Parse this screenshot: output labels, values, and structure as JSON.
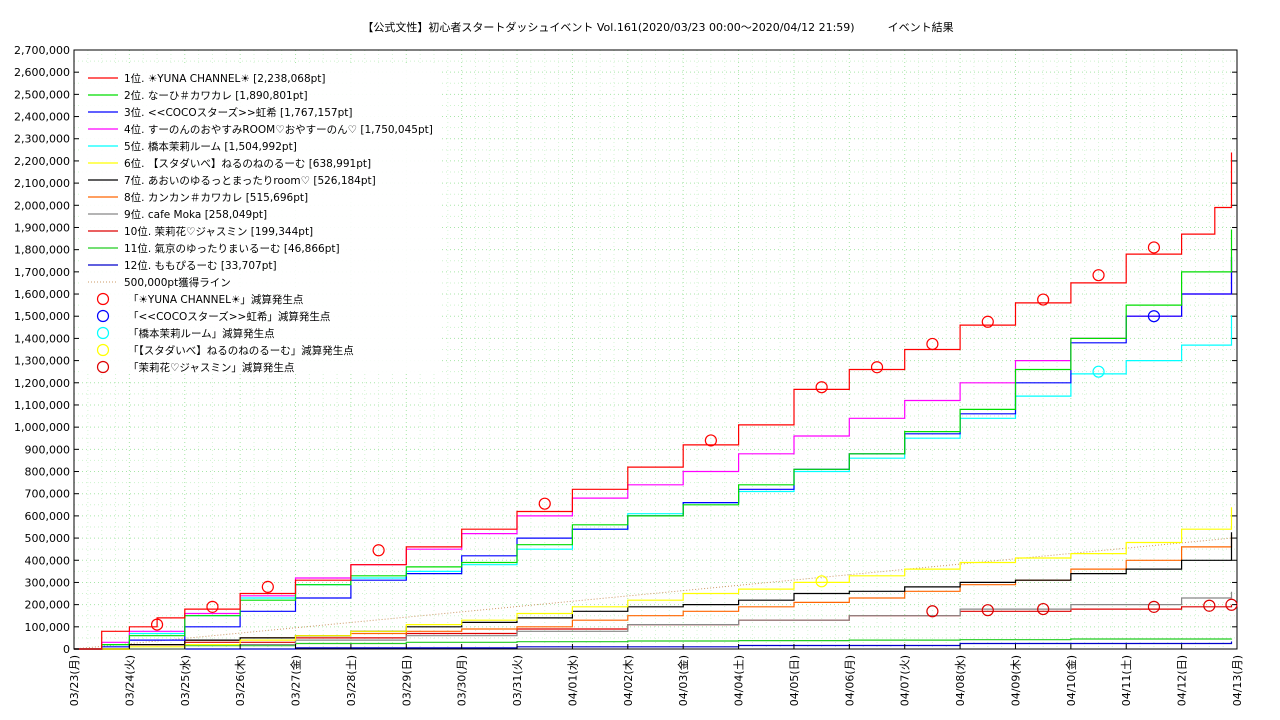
{
  "chart_data": {
    "type": "line",
    "title": "【公式文性】初心者スタートダッシュイベント Vol.161(2020/03/23 00:00〜2020/04/12 21:59)　　　イベント結果",
    "xlabel": "",
    "ylabel": "",
    "ylim": [
      0,
      2700000
    ],
    "xlim": [
      0,
      21
    ],
    "grid": true,
    "legend_position": "top-left",
    "y_ticks": [
      "0",
      "100,000",
      "200,000",
      "300,000",
      "400,000",
      "500,000",
      "600,000",
      "700,000",
      "800,000",
      "900,000",
      "1,000,000",
      "1,100,000",
      "1,200,000",
      "1,300,000",
      "1,400,000",
      "1,500,000",
      "1,600,000",
      "1,700,000",
      "1,800,000",
      "1,900,000",
      "2,000,000",
      "2,100,000",
      "2,200,000",
      "2,300,000",
      "2,400,000",
      "2,500,000",
      "2,600,000",
      "2,700,000"
    ],
    "x_ticks": [
      "03/23(月)",
      "03/24(火)",
      "03/25(水)",
      "03/26(木)",
      "03/27(金)",
      "03/28(土)",
      "03/29(日)",
      "03/30(月)",
      "03/31(火)",
      "04/01(水)",
      "04/02(木)",
      "04/03(金)",
      "04/04(土)",
      "04/05(日)",
      "04/06(月)",
      "04/07(火)",
      "04/08(水)",
      "04/09(木)",
      "04/10(金)",
      "04/11(土)",
      "04/12(日)",
      "04/13(月)"
    ],
    "series": [
      {
        "name": "1位. ☀YUNA CHANNEL☀ [2,238,068pt]",
        "color": "#ff0000",
        "x": [
          0,
          0.5,
          1,
          1.5,
          2,
          3,
          4,
          5,
          6,
          7,
          8,
          9,
          10,
          11,
          12,
          13,
          14,
          15,
          16,
          17,
          18,
          19,
          20,
          20.6,
          20.9
        ],
        "y": [
          0,
          80000,
          100000,
          140000,
          180000,
          250000,
          310000,
          380000,
          460000,
          540000,
          620000,
          720000,
          820000,
          920000,
          1010000,
          1170000,
          1260000,
          1350000,
          1460000,
          1560000,
          1650000,
          1780000,
          1870000,
          1990000,
          2238068
        ]
      },
      {
        "name": "2位. なーひ＃カワカレ [1,890,801pt]",
        "color": "#00dd00",
        "x": [
          0,
          0.5,
          1,
          2,
          3,
          4,
          5,
          6,
          7,
          8,
          9,
          10,
          11,
          12,
          13,
          14,
          15,
          16,
          17,
          18,
          19,
          20,
          20.9
        ],
        "y": [
          0,
          20000,
          60000,
          150000,
          220000,
          290000,
          330000,
          370000,
          390000,
          470000,
          560000,
          600000,
          650000,
          740000,
          810000,
          880000,
          980000,
          1080000,
          1260000,
          1400000,
          1550000,
          1700000,
          1890801
        ]
      },
      {
        "name": "3位. <<COCOスターズ>>虹希 [1,767,157pt]",
        "color": "#0000ff",
        "x": [
          0,
          0.5,
          1,
          2,
          3,
          4,
          5,
          6,
          7,
          8,
          9,
          10,
          11,
          12,
          13,
          14,
          15,
          16,
          17,
          18,
          19,
          20,
          20.9
        ],
        "y": [
          0,
          10000,
          40000,
          100000,
          170000,
          230000,
          310000,
          340000,
          420000,
          500000,
          540000,
          600000,
          660000,
          720000,
          810000,
          880000,
          970000,
          1060000,
          1200000,
          1380000,
          1500000,
          1600000,
          1767157
        ]
      },
      {
        "name": "4位. すーのんのおやすみROOM♡おやすーのん♡ [1,750,045pt]",
        "color": "#ff00ff",
        "x": [
          0,
          0.5,
          1,
          2,
          3,
          4,
          5,
          6,
          7,
          8,
          9,
          10,
          11,
          12,
          13,
          14,
          15,
          16,
          17,
          18,
          19,
          20,
          20.9
        ],
        "y": [
          0,
          30000,
          80000,
          160000,
          240000,
          320000,
          380000,
          450000,
          520000,
          600000,
          680000,
          740000,
          800000,
          880000,
          960000,
          1040000,
          1120000,
          1200000,
          1300000,
          1400000,
          1500000,
          1600000,
          1750045
        ]
      },
      {
        "name": "5位. 橋本茉莉ルーム [1,504,992pt]",
        "color": "#00ffff",
        "x": [
          0,
          0.5,
          1,
          2,
          3,
          4,
          5,
          6,
          7,
          8,
          9,
          10,
          11,
          12,
          13,
          14,
          15,
          16,
          17,
          18,
          19,
          20,
          20.9
        ],
        "y": [
          0,
          20000,
          70000,
          150000,
          230000,
          290000,
          320000,
          350000,
          380000,
          450000,
          540000,
          610000,
          660000,
          710000,
          800000,
          860000,
          950000,
          1040000,
          1140000,
          1240000,
          1300000,
          1370000,
          1504992
        ]
      },
      {
        "name": "6位. 【スタダいべ】ねるのねのるーむ [638,991pt]",
        "color": "#ffff00",
        "x": [
          0,
          1,
          2,
          3,
          4,
          5,
          6,
          7,
          8,
          9,
          10,
          11,
          12,
          13,
          14,
          15,
          16,
          17,
          18,
          19,
          20,
          20.9
        ],
        "y": [
          0,
          10000,
          20000,
          40000,
          60000,
          80000,
          110000,
          130000,
          160000,
          190000,
          220000,
          250000,
          270000,
          300000,
          330000,
          360000,
          390000,
          410000,
          430000,
          480000,
          540000,
          638991
        ]
      },
      {
        "name": "7位. あおいのゆるっとまったりroom♡ [526,184pt]",
        "color": "#000000",
        "x": [
          0,
          1,
          2,
          3,
          4,
          5,
          6,
          7,
          8,
          9,
          10,
          11,
          12,
          13,
          14,
          15,
          16,
          17,
          18,
          19,
          20,
          20.9
        ],
        "y": [
          0,
          20000,
          40000,
          50000,
          60000,
          80000,
          100000,
          120000,
          140000,
          170000,
          190000,
          200000,
          220000,
          250000,
          260000,
          280000,
          300000,
          310000,
          340000,
          360000,
          400000,
          526184
        ]
      },
      {
        "name": "8位. カンカン＃カワカレ [515,696pt]",
        "color": "#ff6600",
        "x": [
          0,
          1,
          2,
          3,
          4,
          5,
          6,
          7,
          8,
          9,
          10,
          11,
          12,
          13,
          14,
          15,
          16,
          17,
          18,
          19,
          20,
          20.9
        ],
        "y": [
          0,
          20000,
          40000,
          50000,
          60000,
          70000,
          80000,
          90000,
          100000,
          130000,
          150000,
          170000,
          190000,
          210000,
          230000,
          260000,
          290000,
          310000,
          360000,
          400000,
          460000,
          515696
        ]
      },
      {
        "name": "9位. cafe Moka [258,049pt]",
        "color": "#888888",
        "x": [
          0,
          2,
          4,
          6,
          8,
          10,
          12,
          14,
          16,
          18,
          20,
          20.9
        ],
        "y": [
          0,
          20000,
          40000,
          60000,
          80000,
          110000,
          130000,
          150000,
          180000,
          200000,
          230000,
          258049
        ]
      },
      {
        "name": "10位. 茉莉花♡ジャスミン [199,344pt]",
        "color": "#dd0000",
        "x": [
          0,
          1,
          2,
          4,
          6,
          8,
          10,
          12,
          14,
          16,
          18,
          20,
          20.9
        ],
        "y": [
          0,
          20000,
          30000,
          50000,
          70000,
          90000,
          110000,
          130000,
          150000,
          170000,
          180000,
          190000,
          199344
        ]
      },
      {
        "name": "11位. 氣京のゆったりまいるーむ [46,866pt]",
        "color": "#22cc22",
        "x": [
          0,
          2,
          4,
          6,
          8,
          10,
          12,
          14,
          16,
          18,
          20.9
        ],
        "y": [
          0,
          15000,
          25000,
          30000,
          33000,
          36000,
          38000,
          40000,
          42000,
          45000,
          46866
        ]
      },
      {
        "name": "12位. ももぴるーむ [33,707pt]",
        "color": "#0000cc",
        "x": [
          0,
          4,
          8,
          12,
          16,
          20.9
        ],
        "y": [
          0,
          5000,
          10000,
          16000,
          25000,
          33707
        ]
      }
    ],
    "reference_line": {
      "name": "500,000pt獲得ライン",
      "color": "#cc9966",
      "x": [
        0,
        20.9
      ],
      "y": [
        0,
        500000
      ]
    },
    "marker_sets": [
      {
        "name": "「☀YUNA CHANNEL☀」減算発生点",
        "color": "#ff0000",
        "x": [
          1.5,
          2.5,
          3.5,
          5.5,
          8.5,
          11.5,
          13.5,
          14.5,
          15.5,
          16.5,
          17.5,
          18.5,
          19.5
        ],
        "y": [
          110000,
          190000,
          280000,
          445000,
          655000,
          940000,
          1180000,
          1270000,
          1375000,
          1475000,
          1575000,
          1685000,
          1810000
        ]
      },
      {
        "name": "「<<COCOスターズ>>虹希」減算発生点",
        "color": "#0000ff",
        "x": [
          19.5
        ],
        "y": [
          1500000
        ]
      },
      {
        "name": "「橋本茉莉ルーム」減算発生点",
        "color": "#00ffff",
        "x": [
          18.5
        ],
        "y": [
          1250000
        ]
      },
      {
        "name": "「【スタダいべ】ねるのねのるーむ」減算発生点",
        "color": "#ffff00",
        "x": [
          13.5
        ],
        "y": [
          305000
        ]
      },
      {
        "name": "「茉莉花♡ジャスミン」減算発生点",
        "color": "#dd0000",
        "x": [
          15.5,
          16.5,
          17.5,
          19.5,
          20.5,
          20.9
        ],
        "y": [
          170000,
          175000,
          180000,
          190000,
          195000,
          199344
        ]
      }
    ]
  }
}
